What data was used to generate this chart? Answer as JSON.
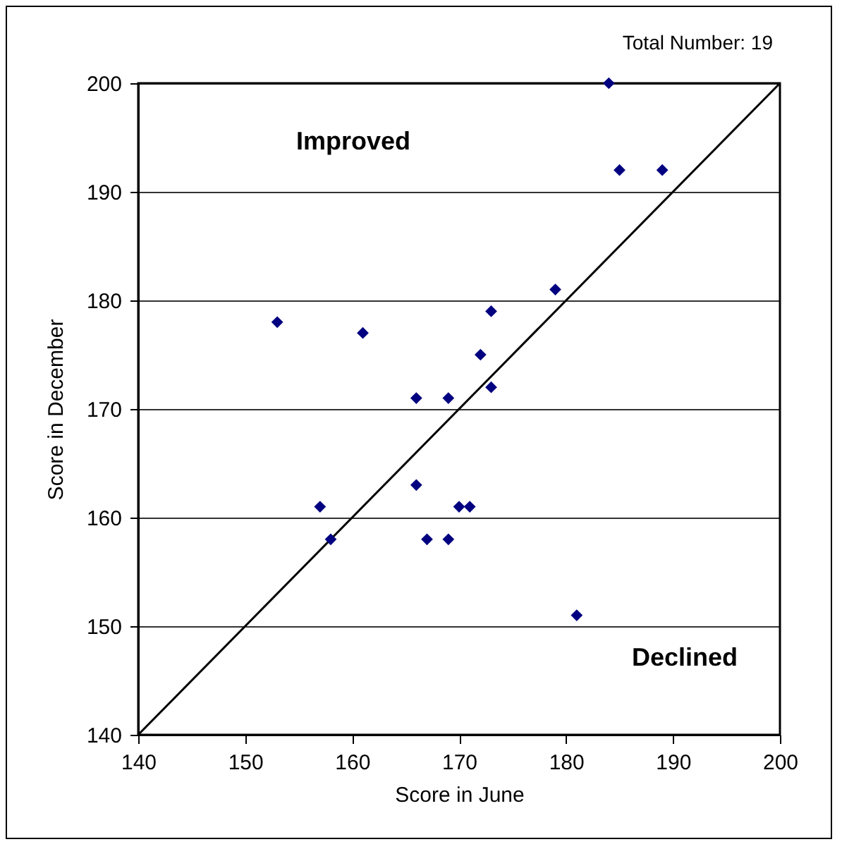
{
  "chart_data": {
    "type": "scatter",
    "xlabel": "Score in June",
    "ylabel": "Score in December",
    "annotations": [
      "Total Number: 19",
      "Improved",
      "Declined"
    ],
    "xlim": [
      140,
      200
    ],
    "xticks": [
      140,
      150,
      160,
      170,
      180,
      190,
      200
    ],
    "ylim": [
      140,
      200
    ],
    "yticks": [
      140,
      150,
      160,
      170,
      180,
      190,
      200
    ],
    "grid": "y",
    "marker": "diamond",
    "series": [
      {
        "color": "#000080",
        "x": [
          184,
          185,
          189,
          179,
          173,
          153,
          161,
          172,
          173,
          166,
          169,
          166,
          157,
          170,
          171,
          158,
          167,
          169,
          181
        ],
        "values": [
          200,
          192,
          192,
          181,
          179,
          178,
          177,
          175,
          172,
          171,
          171,
          163,
          161,
          161,
          161,
          158,
          158,
          158,
          151
        ]
      },
      {
        "type": "line",
        "color": "#000000",
        "line_style": "solid",
        "marker": "none",
        "x": [
          140,
          200
        ],
        "values": [
          140,
          200
        ]
      }
    ]
  }
}
